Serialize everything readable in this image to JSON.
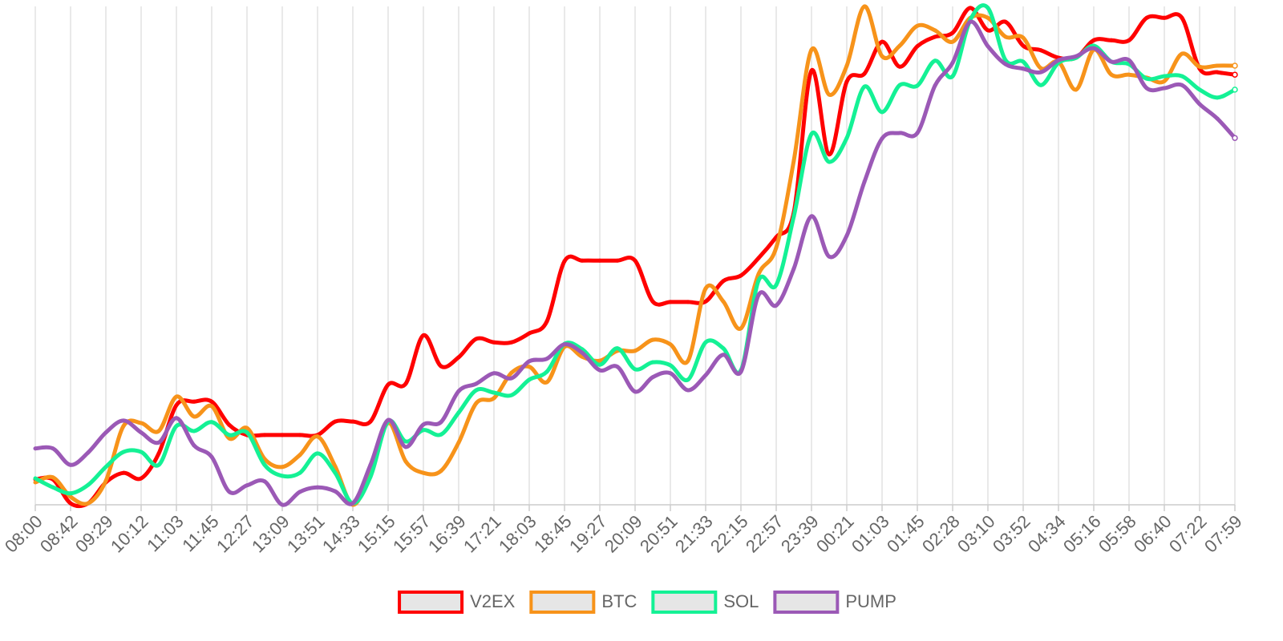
{
  "chart_data": {
    "type": "line",
    "categories": [
      "08:00",
      null,
      "08:42",
      null,
      "09:29",
      null,
      "10:12",
      null,
      "11:03",
      null,
      "11:45",
      null,
      "12:27",
      null,
      "13:09",
      null,
      "13:51",
      null,
      "14:33",
      null,
      "15:15",
      null,
      "15:57",
      null,
      "16:39",
      null,
      "17:21",
      null,
      "18:03",
      null,
      "18:45",
      null,
      "19:27",
      null,
      "20:09",
      null,
      "20:51",
      null,
      "21:33",
      null,
      "22:15",
      null,
      "22:57",
      null,
      "23:39",
      null,
      "00:21",
      null,
      "01:03",
      null,
      "01:45",
      null,
      "02:28",
      null,
      "03:10",
      null,
      "03:52",
      null,
      "04:34",
      null,
      "05:16",
      null,
      "05:58",
      null,
      "06:40",
      null,
      "07:22",
      null,
      "07:59"
    ],
    "ylim": [
      0,
      100
    ],
    "grid": true,
    "legend": "bottom",
    "series": [
      {
        "name": "V2EX",
        "color": "#ff0000",
        "values": [
          5.1,
          5.1,
          0.3,
          0.3,
          4.5,
          6.4,
          5.3,
          10.3,
          20,
          20.7,
          20.7,
          16,
          14,
          14,
          14,
          14,
          14,
          16.7,
          16.7,
          16.7,
          24.1,
          24.3,
          34,
          27.8,
          29.6,
          33.3,
          32.6,
          32.6,
          34.4,
          36.8,
          48.9,
          49,
          49,
          49,
          49,
          40.8,
          40.7,
          40.7,
          40.8,
          44.9,
          46,
          49.5,
          53.7,
          58.7,
          87.1,
          70.3,
          84.9,
          86.5,
          92.9,
          87.9,
          92,
          93.9,
          94.7,
          99.7,
          95.2,
          96.9,
          92.1,
          91.2,
          89.7,
          89.7,
          93.2,
          93.2,
          93.2,
          97.7,
          97.7,
          97.7,
          87.5,
          86.8,
          86.3
        ]
      },
      {
        "name": "BTC",
        "color": "#f7931a",
        "values": [
          4.5,
          5.5,
          1.6,
          0.3,
          4.8,
          15.8,
          16.4,
          14.8,
          21.7,
          17.7,
          19.8,
          13.3,
          15.4,
          9.2,
          7.6,
          10,
          13.7,
          7.7,
          0,
          6.4,
          16.4,
          8.7,
          6.4,
          6.8,
          12.5,
          20.4,
          21.4,
          26.5,
          27.7,
          24.6,
          31.7,
          29.7,
          28.9,
          30.9,
          30.9,
          33.1,
          32.2,
          28.9,
          43.4,
          40.8,
          35.4,
          46.3,
          51.6,
          69.1,
          91.3,
          82.3,
          88.1,
          100,
          90,
          92.1,
          96.1,
          95.2,
          92.9,
          97.7,
          97.7,
          93.9,
          93.7,
          87.6,
          88.9,
          83.3,
          91.3,
          86.3,
          86.3,
          85.7,
          85,
          90.5,
          87.9,
          88.1,
          88.1
        ]
      },
      {
        "name": "SOL",
        "color": "#14f195",
        "values": [
          5.3,
          3.5,
          2.3,
          4,
          7.6,
          10.6,
          10.6,
          8,
          15.8,
          14.8,
          16.6,
          14,
          14.5,
          8,
          5.8,
          6.4,
          10.3,
          6.4,
          0.3,
          5.6,
          16.7,
          12.7,
          15,
          14.1,
          18.5,
          23,
          22.5,
          22,
          25.1,
          26.7,
          32.3,
          31.2,
          28.1,
          31.4,
          27.2,
          28.6,
          28,
          25.1,
          32.6,
          31.4,
          27,
          45,
          44.1,
          57.9,
          74.4,
          68.8,
          73.6,
          83.9,
          78.8,
          84.2,
          84.1,
          89.1,
          86,
          97.3,
          99.7,
          89.2,
          88.9,
          84.2,
          88.7,
          89.7,
          92.1,
          88.9,
          88.4,
          85.5,
          86,
          86,
          83.3,
          81.7,
          83.3
        ]
      },
      {
        "name": "PUMP",
        "color": "#9b59b6",
        "values": [
          11.3,
          11.3,
          8,
          10.5,
          14.5,
          16.9,
          14.5,
          12.5,
          17.4,
          11.9,
          9.6,
          2.6,
          3.9,
          4.7,
          0,
          2.6,
          3.5,
          2.7,
          0.3,
          8,
          17,
          11.6,
          16.1,
          16.6,
          22.8,
          24.3,
          26.4,
          25.4,
          28.8,
          29.3,
          32.2,
          30.5,
          27,
          27.7,
          22.7,
          25.6,
          26.4,
          23,
          26,
          30.1,
          26.7,
          42.1,
          40,
          47.4,
          57.9,
          49.8,
          54,
          64.8,
          73.5,
          74.6,
          74.6,
          84.1,
          88.7,
          96.9,
          92,
          88.4,
          87.5,
          86.8,
          89.2,
          90,
          91.6,
          88.9,
          89.2,
          83.6,
          83.6,
          84.2,
          80.4,
          77.5,
          73.6
        ]
      }
    ]
  }
}
